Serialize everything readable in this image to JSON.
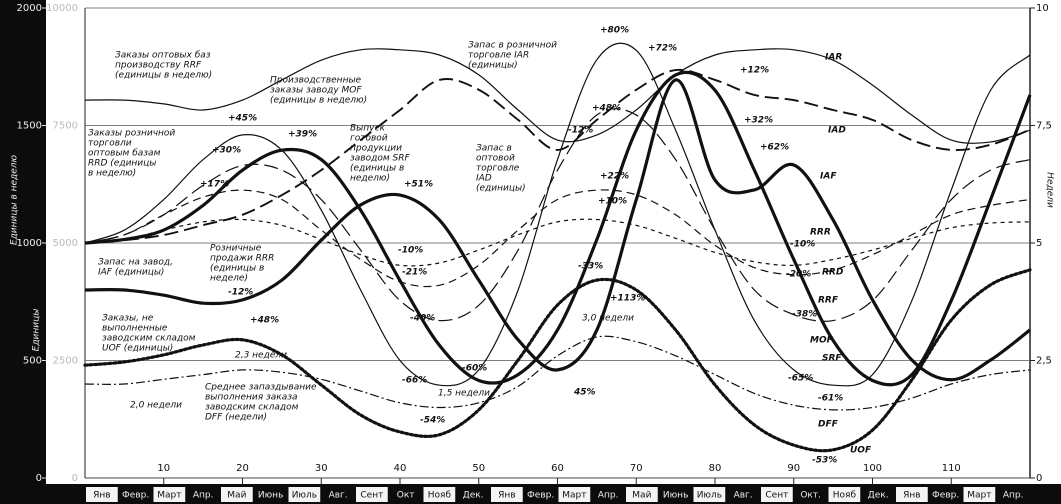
{
  "chart_data": {
    "type": "line",
    "ylabel": "Единицы",
    "y3label": "Единицы в неделю",
    "y2label": "Недели",
    "xlim": [
      0,
      120
    ],
    "xticks": [
      10,
      20,
      30,
      40,
      50,
      60,
      70,
      80,
      90,
      100,
      110
    ],
    "ylim": [
      0,
      10000
    ],
    "yticks": [
      0,
      2500,
      5000,
      7500,
      10000
    ],
    "y3lim": [
      0,
      2000
    ],
    "y3ticks": [
      0,
      500,
      1000,
      1500,
      2000
    ],
    "y2lim": [
      0,
      10
    ],
    "y2ticks": [
      0,
      {
        "value": 2.5,
        "label": "2,5"
      },
      5,
      {
        "value": 7.5,
        "label": "7,5"
      },
      10
    ],
    "grid": true,
    "months": [
      "Янв",
      "Февр.",
      "Март",
      "Апр.",
      "Май",
      "Июнь",
      "Июль",
      "Авг.",
      "Сент",
      "Окт",
      "Нояб",
      "Дек.",
      "Янв",
      "Февр.",
      "Март",
      "Апр.",
      "Май",
      "Июнь",
      "Июль",
      "Авг.",
      "Сент",
      "Окт.",
      "Нояб",
      "Дек.",
      "Янв",
      "Февр.",
      "Март",
      "Апр."
    ],
    "x": [
      0,
      5,
      10,
      15,
      20,
      25,
      30,
      35,
      40,
      45,
      50,
      55,
      60,
      65,
      70,
      75,
      80,
      85,
      90,
      95,
      100,
      105,
      110,
      115,
      120
    ],
    "series": [
      {
        "name": "IAR",
        "color": "#111111",
        "style": "solid",
        "weight": "thin",
        "values": [
          8040,
          8040,
          7960,
          7830,
          8040,
          8470,
          8890,
          9110,
          9110,
          9000,
          8580,
          7830,
          7190,
          7300,
          7830,
          8580,
          9000,
          9110,
          9110,
          8890,
          8360,
          7720,
          7190,
          7150,
          7400
        ]
      },
      {
        "name": "IAD",
        "color": "#111111",
        "style": "long-dash",
        "weight": "medium",
        "values": [
          5000,
          5060,
          5170,
          5380,
          5600,
          6020,
          6550,
          7190,
          7830,
          8470,
          8260,
          7620,
          6980,
          7620,
          8260,
          8680,
          8470,
          8150,
          8040,
          7830,
          7620,
          7190,
          6980,
          7090,
          7410
        ]
      },
      {
        "name": "IAF",
        "color": "#111111",
        "style": "solid",
        "weight": "thick",
        "values": [
          4000,
          4000,
          3890,
          3720,
          3790,
          4210,
          5060,
          5810,
          6020,
          5490,
          4210,
          2940,
          2300,
          3150,
          5920,
          8470,
          6340,
          6130,
          6660,
          5490,
          3790,
          2510,
          2090,
          2510,
          3150
        ]
      },
      {
        "name": "RRR",
        "color": "#111111",
        "style": "short-dash",
        "weight": "thin",
        "axis": "y3",
        "values": [
          1000,
          1015,
          1055,
          1090,
          1100,
          1075,
          1015,
          950,
          905,
          915,
          970,
          1035,
          1090,
          1100,
          1075,
          1020,
          960,
          920,
          905,
          930,
          970,
          1020,
          1065,
          1085,
          1090
        ]
      },
      {
        "name": "RRD",
        "color": "#111111",
        "style": "dash",
        "weight": "thin",
        "axis": "y3",
        "values": [
          1000,
          1035,
          1120,
          1195,
          1225,
          1185,
          1055,
          930,
          835,
          820,
          905,
          1055,
          1185,
          1225,
          1205,
          1120,
          990,
          895,
          865,
          885,
          950,
          1035,
          1120,
          1160,
          1185
        ]
      },
      {
        "name": "RRF",
        "color": "#111111",
        "style": "long-dash",
        "weight": "thin",
        "axis": "y3",
        "values": [
          1000,
          1035,
          1120,
          1245,
          1330,
          1310,
          1185,
          970,
          755,
          670,
          735,
          970,
          1310,
          1545,
          1545,
          1355,
          1055,
          800,
          695,
          670,
          755,
          970,
          1185,
          1310,
          1355
        ]
      },
      {
        "name": "MOF",
        "color": "#111111",
        "style": "solid",
        "weight": "thick",
        "axis": "y3",
        "values": [
          1000,
          1015,
          1055,
          1160,
          1310,
          1395,
          1355,
          1140,
          840,
          565,
          415,
          440,
          630,
          1015,
          1480,
          1715,
          1650,
          1310,
          930,
          585,
          415,
          440,
          755,
          1185,
          1630
        ]
      },
      {
        "name": "SRF",
        "color": "#111111",
        "style": "solid",
        "weight": "thin",
        "axis": "y3",
        "values": [
          1000,
          1055,
          1185,
          1355,
          1460,
          1395,
          1140,
          800,
          500,
          395,
          460,
          800,
          1355,
          1780,
          1820,
          1480,
          1055,
          670,
          460,
          395,
          440,
          755,
          1225,
          1650,
          1800
        ]
      },
      {
        "name": "UOF",
        "color": "#111111",
        "style": "dot",
        "weight": "thick",
        "values": [
          2400,
          2470,
          2620,
          2830,
          2940,
          2620,
          1980,
          1340,
          980,
          920,
          1450,
          2510,
          3680,
          4210,
          4000,
          3150,
          1980,
          1130,
          700,
          600,
          1020,
          2090,
          3360,
          4110,
          4430
        ]
      },
      {
        "name": "DFF",
        "color": "#111111",
        "style": "dash-dot",
        "weight": "thin",
        "axis": "y2",
        "values": [
          2.0,
          2.0,
          2.1,
          2.2,
          2.3,
          2.25,
          2.1,
          1.85,
          1.6,
          1.5,
          1.6,
          1.95,
          2.6,
          3.0,
          2.9,
          2.6,
          2.2,
          1.8,
          1.55,
          1.45,
          1.5,
          1.7,
          2.0,
          2.2,
          2.3
        ]
      }
    ],
    "annotations": [
      [
        "Заказы оптовых баз",
        "производству RRF",
        "(единицы в неделю)"
      ],
      [
        "Производственные",
        "заказы заводу MOF",
        "(единицы в неделю)"
      ],
      [
        "Запас в розничной",
        "торговле IAR",
        "(единицы)"
      ],
      [
        "Заказы розничной",
        "торговли",
        "оптовым базам",
        "RRD (единицы",
        "в неделю)"
      ],
      [
        "Выпуск",
        "готовой",
        "продукции",
        "заводом SRF",
        "(единицы в",
        "неделю)"
      ],
      [
        "Запас в",
        "оптовой",
        "торговле",
        "IAD",
        "(единицы)"
      ],
      [
        "Розничные",
        "продажи RRR",
        "(единицы в",
        "неделе)"
      ],
      [
        "Запас на завод,",
        "IAF (единицы)"
      ],
      [
        "Заказы, не",
        "выполненные",
        "заводским складом",
        "UOF (единицы)"
      ],
      [
        "Среднее запаздывание",
        "выполнения заказа",
        "заводским складом",
        "DFF (недели)"
      ]
    ],
    "point_labels": [
      "+45%",
      "+30%",
      "+17%",
      "+39%",
      "+51%",
      "-10%",
      "-21%",
      "-40%",
      "-12%",
      "+48%",
      "-66%",
      "-54%",
      "-60%",
      "+80%",
      "+72%",
      "-12%",
      "+48%",
      "+22%",
      "+10%",
      "-33%",
      "+113%",
      "45%",
      "+12%",
      "+32%",
      "+62%",
      "-10%",
      "-20%",
      "-38%",
      "-65%",
      "-61%",
      "-53%"
    ],
    "week_labels": [
      "2,0 недели",
      "2,3 недели",
      "1,5 недели",
      "3,0 недели"
    ]
  }
}
